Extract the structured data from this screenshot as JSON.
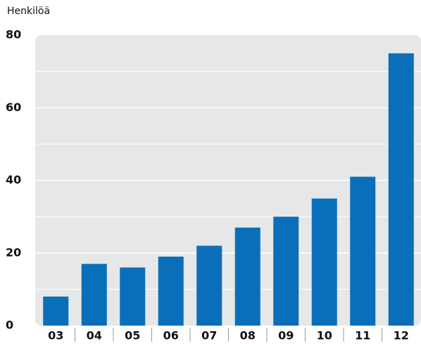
{
  "chart_data": {
    "type": "bar",
    "y_label": "Henkilöä",
    "categories": [
      "03",
      "04",
      "05",
      "06",
      "07",
      "08",
      "09",
      "10",
      "11",
      "12"
    ],
    "values": [
      8,
      17,
      16,
      19,
      22,
      27,
      30,
      35,
      41,
      75
    ],
    "color": "#0a6fba",
    "ylim": [
      0,
      80
    ],
    "yticks": [
      0,
      20,
      40,
      60,
      80
    ],
    "minor_yticks": [
      10,
      30,
      50,
      70
    ],
    "grid": true
  }
}
